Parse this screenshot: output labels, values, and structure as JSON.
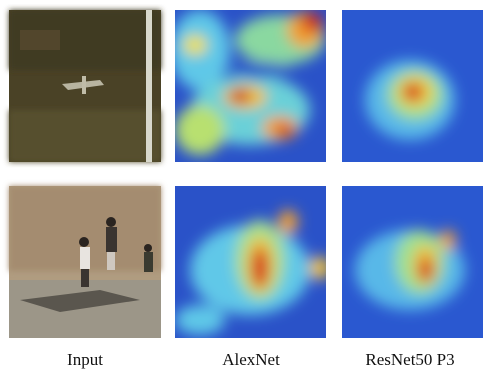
{
  "figure": {
    "columns": [
      {
        "label": "Input"
      },
      {
        "label": "AlexNet"
      },
      {
        "label": "ResNet50 P3"
      }
    ]
  }
}
